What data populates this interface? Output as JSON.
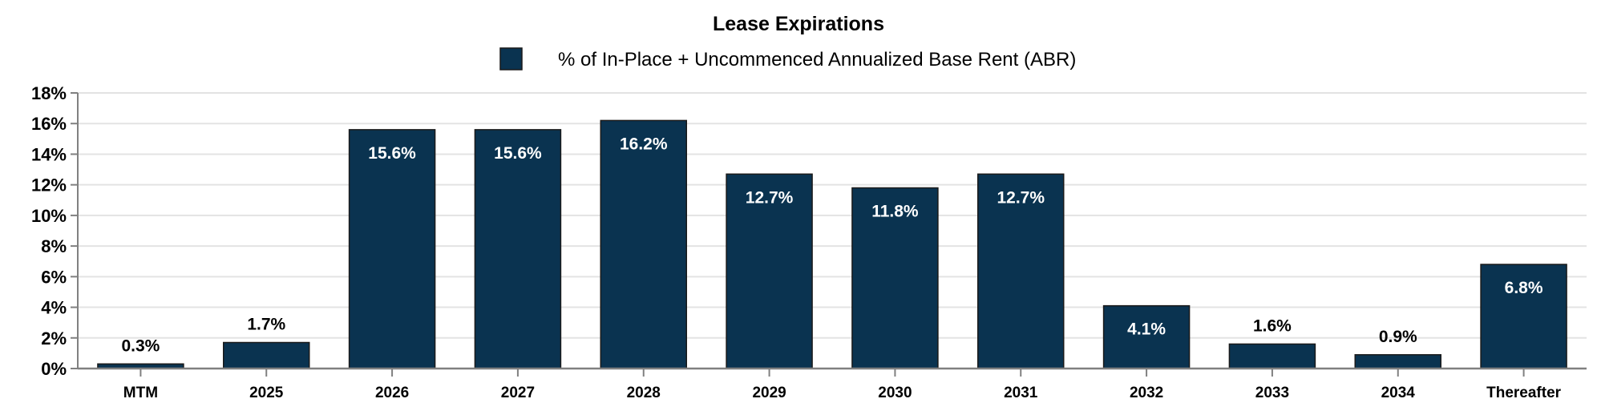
{
  "chart_data": {
    "type": "bar",
    "title": "Lease Expirations",
    "categories": [
      "MTM",
      "2025",
      "2026",
      "2027",
      "2028",
      "2029",
      "2030",
      "2031",
      "2032",
      "2033",
      "2034",
      "Thereafter"
    ],
    "series": [
      {
        "name": "% of In-Place + Uncommenced Annualized Base Rent (ABR)",
        "values": [
          0.3,
          1.7,
          15.6,
          15.6,
          16.2,
          12.7,
          11.8,
          12.7,
          4.1,
          1.6,
          0.9,
          6.8
        ],
        "labels": [
          "0.3%",
          "1.7%",
          "15.6%",
          "15.6%",
          "16.2%",
          "12.7%",
          "11.8%",
          "12.7%",
          "4.1%",
          "1.6%",
          "0.9%",
          "6.8%"
        ]
      }
    ],
    "xlabel": "",
    "ylabel": "",
    "ylim": [
      0,
      18
    ],
    "yticks": [
      "0%",
      "2%",
      "4%",
      "6%",
      "8%",
      "10%",
      "12%",
      "14%",
      "16%",
      "18%"
    ],
    "grid": true,
    "legend": "top-center",
    "colors": {
      "bar": "#0a3350",
      "bar_border": "#1a1a1a",
      "grid": "#e3e3e3",
      "axis": "#808080"
    }
  }
}
